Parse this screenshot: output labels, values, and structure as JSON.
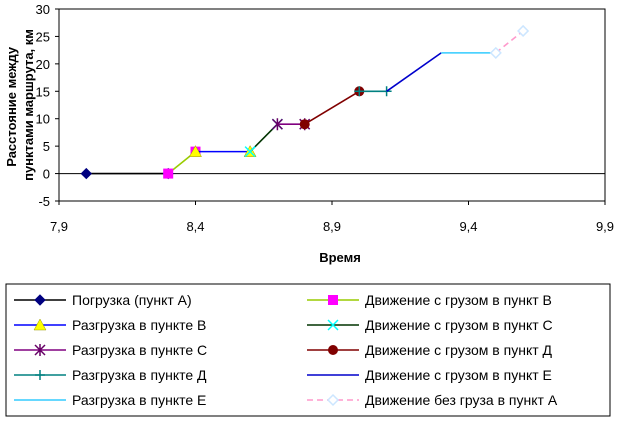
{
  "chart_data": {
    "type": "line",
    "title": "",
    "xlabel": "Время",
    "ylabel_lines": [
      "Расстояние между",
      "пунктами маршрута, км"
    ],
    "xlim": [
      7.9,
      9.9
    ],
    "ylim": [
      -5,
      30
    ],
    "x_ticks": [
      "7,9",
      "8,4",
      "8,9",
      "9,4",
      "9,9"
    ],
    "x_tick_values": [
      7.9,
      8.4,
      8.9,
      9.4,
      9.9
    ],
    "y_ticks": [
      "-5",
      "0",
      "5",
      "10",
      "15",
      "20",
      "25",
      "30"
    ],
    "y_tick_values": [
      -5,
      0,
      5,
      10,
      15,
      20,
      25,
      30
    ],
    "grid": false,
    "legend_position": "bottom",
    "series": [
      {
        "name": "Погрузка (пункт А)",
        "color": "#000080",
        "line": "#000000",
        "marker": "diamond",
        "points": [
          [
            8.0,
            0
          ],
          [
            8.3,
            0
          ]
        ]
      },
      {
        "name": "Движение с грузом в пункт В",
        "color": "#FF00FF",
        "line": "#99CC00",
        "marker": "square",
        "points": [
          [
            8.3,
            0
          ],
          [
            8.4,
            4
          ]
        ]
      },
      {
        "name": "Разгрузка в пункте В",
        "color": "#FFFF00",
        "line": "#0000FF",
        "marker": "triangle",
        "points": [
          [
            8.4,
            4
          ],
          [
            8.6,
            4
          ]
        ]
      },
      {
        "name": "Движение с грузом в пункт С",
        "color": "#00FFFF",
        "line": "#003300",
        "marker": "x",
        "points": [
          [
            8.6,
            4
          ],
          [
            8.7,
            9
          ]
        ]
      },
      {
        "name": "Разгрузка в пункте С",
        "color": "#660066",
        "line": "#800080",
        "marker": "star",
        "points": [
          [
            8.7,
            9
          ],
          [
            8.8,
            9
          ]
        ]
      },
      {
        "name": "Движение с грузом в пункт Д",
        "color": "#800000",
        "line": "#800000",
        "marker": "circle",
        "points": [
          [
            8.8,
            9
          ],
          [
            9.0,
            15
          ]
        ]
      },
      {
        "name": "Разгрузка в пункте Д",
        "color": "#008080",
        "line": "#008080",
        "marker": "plus",
        "points": [
          [
            9.0,
            15
          ],
          [
            9.1,
            15
          ]
        ]
      },
      {
        "name": "Движение с грузом в пункт Е",
        "color": "#0000CC",
        "line": "#0000CC",
        "marker": "none",
        "points": [
          [
            9.1,
            15
          ],
          [
            9.3,
            22
          ]
        ]
      },
      {
        "name": "Разгрузка в пункте Е",
        "color": "#33CCFF",
        "line": "#33CCFF",
        "marker": "none",
        "points": [
          [
            9.3,
            22
          ],
          [
            9.5,
            22
          ]
        ]
      },
      {
        "name": "Движение без груза в пункт А",
        "color": "#CCE6FF",
        "line": "#FF99CC",
        "marker": "diamond-open",
        "dashed": true,
        "points": [
          [
            9.5,
            22
          ],
          [
            9.6,
            26
          ]
        ]
      }
    ]
  }
}
